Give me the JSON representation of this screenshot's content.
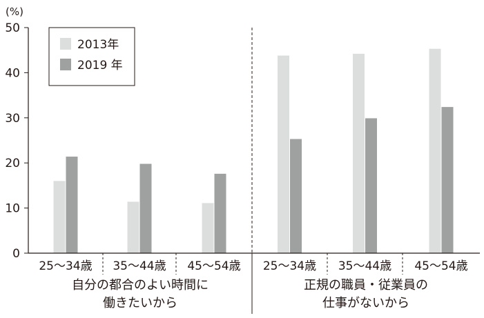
{
  "chart_data": {
    "type": "bar",
    "unit_label": "(%)",
    "ylim": [
      0,
      50
    ],
    "yticks": [
      "0",
      "10",
      "20",
      "30",
      "40",
      "50"
    ],
    "grid": false,
    "legend_position": "top-left",
    "categories": [
      "25～34歳",
      "35～44歳",
      "45～54歳",
      "25～34歳",
      "35～44歳",
      "45～54歳"
    ],
    "groups": [
      {
        "label_lines": [
          "自分の都合のよい時間に",
          "働きたいから"
        ],
        "span": [
          0,
          2
        ]
      },
      {
        "label_lines": [
          "正規の職員・従業員の",
          "仕事がないから"
        ],
        "span": [
          3,
          5
        ]
      }
    ],
    "series": [
      {
        "name": "2013年",
        "color": "#dcdddd",
        "values": [
          16,
          11.4,
          11.1,
          43.8,
          44.2,
          45.3
        ]
      },
      {
        "name": "2019 年",
        "color": "#9fa0a0",
        "values": [
          21.4,
          19.8,
          17.6,
          25.3,
          29.9,
          32.4
        ]
      }
    ]
  }
}
